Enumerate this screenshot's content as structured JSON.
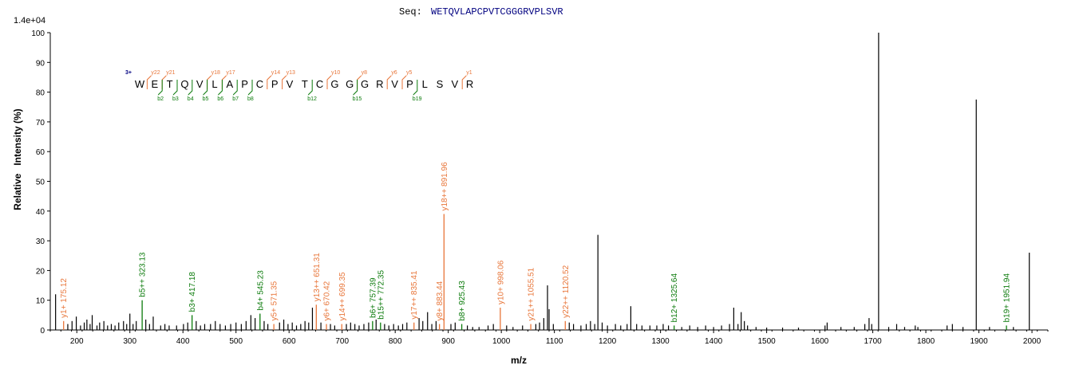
{
  "header": {
    "seq_label": "Seq:",
    "sequence": "WETQVLAPCPVTCGGGRVPLSVR",
    "max_intensity": "1.4e+04"
  },
  "colors": {
    "y_ion": "#E8763A",
    "b_ion": "#0A7A0A",
    "peak": "#000000",
    "charge": "#000080",
    "axis": "#000000"
  },
  "ladder": {
    "charge": "3+",
    "residues": [
      "W",
      "E",
      "T",
      "Q",
      "V",
      "L",
      "A",
      "P",
      "C",
      "P",
      "V",
      "T",
      "C",
      "G",
      "G",
      "G",
      "R",
      "V",
      "P",
      "L",
      "S",
      "V",
      "R"
    ],
    "y_marks": [
      {
        "after": 1,
        "label": "y22"
      },
      {
        "after": 2,
        "label": "y21"
      },
      {
        "after": 5,
        "label": "y18"
      },
      {
        "after": 6,
        "label": "y17"
      },
      {
        "after": 9,
        "label": "y14"
      },
      {
        "after": 10,
        "label": "y13"
      },
      {
        "after": 13,
        "label": "y10"
      },
      {
        "after": 15,
        "label": "y8"
      },
      {
        "after": 17,
        "label": "y6"
      },
      {
        "after": 18,
        "label": "y5"
      },
      {
        "after": 22,
        "label": "y1"
      }
    ],
    "b_marks": [
      {
        "after": 2,
        "label": "b2"
      },
      {
        "after": 3,
        "label": "b3"
      },
      {
        "after": 4,
        "label": "b4"
      },
      {
        "after": 5,
        "label": "b5"
      },
      {
        "after": 6,
        "label": "b6"
      },
      {
        "after": 7,
        "label": "b7"
      },
      {
        "after": 8,
        "label": "b8"
      },
      {
        "after": 12,
        "label": "b12"
      },
      {
        "after": 15,
        "label": "b15"
      },
      {
        "after": 19,
        "label": "b19"
      }
    ]
  },
  "chart_data": {
    "type": "bar",
    "xlabel": "m/z",
    "ylabel": "Relative   Intensity (%)",
    "xlim": [
      150,
      2030
    ],
    "ylim": [
      0,
      100
    ],
    "x_ticks": [
      200,
      300,
      400,
      500,
      600,
      700,
      800,
      900,
      1000,
      1100,
      1200,
      1300,
      1400,
      1500,
      1600,
      1700,
      1800,
      1900,
      2000
    ],
    "y_ticks": [
      0,
      10,
      20,
      30,
      40,
      50,
      60,
      70,
      80,
      90,
      100
    ],
    "grid": false,
    "annotated_peaks": [
      {
        "mz": 175.12,
        "intensity": 3,
        "label": "y1+ 175.12",
        "ion": "y"
      },
      {
        "mz": 323.13,
        "intensity": 10,
        "label": "b5++ 323.13",
        "ion": "b"
      },
      {
        "mz": 417.18,
        "intensity": 5,
        "label": "b3+ 417.18",
        "ion": "b"
      },
      {
        "mz": 545.23,
        "intensity": 5.5,
        "label": "b4+ 545.23",
        "ion": "b"
      },
      {
        "mz": 571.35,
        "intensity": 2,
        "label": "y5+ 571.35",
        "ion": "y"
      },
      {
        "mz": 651.31,
        "intensity": 8.5,
        "label": "y13++ 651.31",
        "ion": "y"
      },
      {
        "mz": 670.42,
        "intensity": 2,
        "label": "y6+ 670.42",
        "ion": "y"
      },
      {
        "mz": 699.35,
        "intensity": 2,
        "label": "y14++ 699.35",
        "ion": "y"
      },
      {
        "mz": 757.39,
        "intensity": 3,
        "label": "b6+ 757.39",
        "ion": "b"
      },
      {
        "mz": 772.35,
        "intensity": 2.5,
        "label": "b15++ 772.35",
        "ion": "b"
      },
      {
        "mz": 835.41,
        "intensity": 2.5,
        "label": "y17++ 835.41",
        "ion": "y"
      },
      {
        "mz": 883.44,
        "intensity": 2,
        "label": "y8+ 883.44",
        "ion": "y"
      },
      {
        "mz": 891.96,
        "intensity": 39,
        "label": "y18++ 891.96",
        "ion": "y"
      },
      {
        "mz": 925.43,
        "intensity": 2,
        "label": "b8+ 925.43",
        "ion": "b"
      },
      {
        "mz": 998.06,
        "intensity": 7.5,
        "label": "y10+ 998.06",
        "ion": "y"
      },
      {
        "mz": 1055.51,
        "intensity": 2,
        "label": "y21++ 1055.51",
        "ion": "y"
      },
      {
        "mz": 1120.52,
        "intensity": 3,
        "label": "y22++ 1120.52",
        "ion": "y"
      },
      {
        "mz": 1325.64,
        "intensity": 1.5,
        "label": "b12+ 1325.64",
        "ion": "b"
      },
      {
        "mz": 1951.94,
        "intensity": 1.5,
        "label": "b19+ 1951.94",
        "ion": "b"
      }
    ],
    "peaks": [
      {
        "mz": 160,
        "intensity": 12
      },
      {
        "mz": 183,
        "intensity": 2
      },
      {
        "mz": 191,
        "intensity": 3
      },
      {
        "mz": 199,
        "intensity": 4.5
      },
      {
        "mz": 207,
        "intensity": 1.5
      },
      {
        "mz": 214,
        "intensity": 2.5
      },
      {
        "mz": 219,
        "intensity": 3.5
      },
      {
        "mz": 225,
        "intensity": 2
      },
      {
        "mz": 229,
        "intensity": 5
      },
      {
        "mz": 238,
        "intensity": 1.5
      },
      {
        "mz": 243,
        "intensity": 2.5
      },
      {
        "mz": 251,
        "intensity": 3
      },
      {
        "mz": 258,
        "intensity": 1.5
      },
      {
        "mz": 265,
        "intensity": 2
      },
      {
        "mz": 272,
        "intensity": 1.5
      },
      {
        "mz": 279,
        "intensity": 2.5
      },
      {
        "mz": 288,
        "intensity": 3
      },
      {
        "mz": 294,
        "intensity": 2
      },
      {
        "mz": 300,
        "intensity": 5.5
      },
      {
        "mz": 306,
        "intensity": 2
      },
      {
        "mz": 312,
        "intensity": 3
      },
      {
        "mz": 330,
        "intensity": 3.5
      },
      {
        "mz": 337,
        "intensity": 2
      },
      {
        "mz": 344,
        "intensity": 4.5
      },
      {
        "mz": 358,
        "intensity": 1.5
      },
      {
        "mz": 366,
        "intensity": 2
      },
      {
        "mz": 374,
        "intensity": 1.5
      },
      {
        "mz": 388,
        "intensity": 1.5
      },
      {
        "mz": 401,
        "intensity": 2
      },
      {
        "mz": 409,
        "intensity": 2.5
      },
      {
        "mz": 425,
        "intensity": 3
      },
      {
        "mz": 433,
        "intensity": 1.5
      },
      {
        "mz": 441,
        "intensity": 2
      },
      {
        "mz": 452,
        "intensity": 2
      },
      {
        "mz": 461,
        "intensity": 3
      },
      {
        "mz": 470,
        "intensity": 2
      },
      {
        "mz": 480,
        "intensity": 1.5
      },
      {
        "mz": 490,
        "intensity": 2
      },
      {
        "mz": 500,
        "intensity": 2.5
      },
      {
        "mz": 510,
        "intensity": 2
      },
      {
        "mz": 519,
        "intensity": 3
      },
      {
        "mz": 528,
        "intensity": 5
      },
      {
        "mz": 536,
        "intensity": 4
      },
      {
        "mz": 553,
        "intensity": 3
      },
      {
        "mz": 560,
        "intensity": 2
      },
      {
        "mz": 582,
        "intensity": 2.5
      },
      {
        "mz": 590,
        "intensity": 3.5
      },
      {
        "mz": 598,
        "intensity": 2
      },
      {
        "mz": 606,
        "intensity": 2.5
      },
      {
        "mz": 614,
        "intensity": 1.5
      },
      {
        "mz": 622,
        "intensity": 2
      },
      {
        "mz": 630,
        "intensity": 3
      },
      {
        "mz": 637,
        "intensity": 2.5
      },
      {
        "mz": 644,
        "intensity": 7.5
      },
      {
        "mz": 660,
        "intensity": 2.5
      },
      {
        "mz": 678,
        "intensity": 2
      },
      {
        "mz": 686,
        "intensity": 1.5
      },
      {
        "mz": 708,
        "intensity": 2
      },
      {
        "mz": 716,
        "intensity": 2.5
      },
      {
        "mz": 724,
        "intensity": 2
      },
      {
        "mz": 732,
        "intensity": 1.5
      },
      {
        "mz": 741,
        "intensity": 2
      },
      {
        "mz": 750,
        "intensity": 2.5
      },
      {
        "mz": 764,
        "intensity": 3.5
      },
      {
        "mz": 780,
        "intensity": 2
      },
      {
        "mz": 788,
        "intensity": 1.5
      },
      {
        "mz": 797,
        "intensity": 2
      },
      {
        "mz": 806,
        "intensity": 1.5
      },
      {
        "mz": 814,
        "intensity": 2
      },
      {
        "mz": 822,
        "intensity": 2.5
      },
      {
        "mz": 845,
        "intensity": 4
      },
      {
        "mz": 852,
        "intensity": 3
      },
      {
        "mz": 861,
        "intensity": 6
      },
      {
        "mz": 869,
        "intensity": 2
      },
      {
        "mz": 877,
        "intensity": 3
      },
      {
        "mz": 905,
        "intensity": 2
      },
      {
        "mz": 913,
        "intensity": 2.5
      },
      {
        "mz": 936,
        "intensity": 1.5
      },
      {
        "mz": 946,
        "intensity": 1
      },
      {
        "mz": 958,
        "intensity": 1
      },
      {
        "mz": 975,
        "intensity": 1.5
      },
      {
        "mz": 985,
        "intensity": 2
      },
      {
        "mz": 1010,
        "intensity": 1.5
      },
      {
        "mz": 1022,
        "intensity": 1
      },
      {
        "mz": 1040,
        "intensity": 1.5
      },
      {
        "mz": 1065,
        "intensity": 2
      },
      {
        "mz": 1072,
        "intensity": 2.5
      },
      {
        "mz": 1080,
        "intensity": 4
      },
      {
        "mz": 1087,
        "intensity": 15
      },
      {
        "mz": 1090,
        "intensity": 7
      },
      {
        "mz": 1098,
        "intensity": 2
      },
      {
        "mz": 1128,
        "intensity": 2.5
      },
      {
        "mz": 1136,
        "intensity": 2
      },
      {
        "mz": 1150,
        "intensity": 1.5
      },
      {
        "mz": 1160,
        "intensity": 2
      },
      {
        "mz": 1168,
        "intensity": 3
      },
      {
        "mz": 1176,
        "intensity": 2
      },
      {
        "mz": 1182,
        "intensity": 32
      },
      {
        "mz": 1190,
        "intensity": 2.5
      },
      {
        "mz": 1200,
        "intensity": 1.5
      },
      {
        "mz": 1215,
        "intensity": 2
      },
      {
        "mz": 1225,
        "intensity": 1.5
      },
      {
        "mz": 1237,
        "intensity": 2
      },
      {
        "mz": 1244,
        "intensity": 8
      },
      {
        "mz": 1255,
        "intensity": 2
      },
      {
        "mz": 1265,
        "intensity": 1.5
      },
      {
        "mz": 1280,
        "intensity": 1.5
      },
      {
        "mz": 1293,
        "intensity": 1.5
      },
      {
        "mz": 1305,
        "intensity": 2
      },
      {
        "mz": 1315,
        "intensity": 1.5
      },
      {
        "mz": 1340,
        "intensity": 1
      },
      {
        "mz": 1355,
        "intensity": 1.5
      },
      {
        "mz": 1370,
        "intensity": 1
      },
      {
        "mz": 1385,
        "intensity": 1.5
      },
      {
        "mz": 1400,
        "intensity": 1
      },
      {
        "mz": 1415,
        "intensity": 1.5
      },
      {
        "mz": 1430,
        "intensity": 2
      },
      {
        "mz": 1438,
        "intensity": 7.5
      },
      {
        "mz": 1446,
        "intensity": 2
      },
      {
        "mz": 1452,
        "intensity": 6
      },
      {
        "mz": 1458,
        "intensity": 3
      },
      {
        "mz": 1464,
        "intensity": 1.5
      },
      {
        "mz": 1480,
        "intensity": 1
      },
      {
        "mz": 1500,
        "intensity": 0.8
      },
      {
        "mz": 1530,
        "intensity": 0.8
      },
      {
        "mz": 1560,
        "intensity": 0.8
      },
      {
        "mz": 1610,
        "intensity": 1.5
      },
      {
        "mz": 1614,
        "intensity": 2.5
      },
      {
        "mz": 1640,
        "intensity": 1
      },
      {
        "mz": 1665,
        "intensity": 1
      },
      {
        "mz": 1685,
        "intensity": 2
      },
      {
        "mz": 1693,
        "intensity": 4
      },
      {
        "mz": 1698,
        "intensity": 2
      },
      {
        "mz": 1711,
        "intensity": 100
      },
      {
        "mz": 1730,
        "intensity": 1
      },
      {
        "mz": 1745,
        "intensity": 2
      },
      {
        "mz": 1760,
        "intensity": 1
      },
      {
        "mz": 1780,
        "intensity": 1.5
      },
      {
        "mz": 1785,
        "intensity": 1
      },
      {
        "mz": 1840,
        "intensity": 1.5
      },
      {
        "mz": 1850,
        "intensity": 2
      },
      {
        "mz": 1870,
        "intensity": 1
      },
      {
        "mz": 1895,
        "intensity": 77.5
      },
      {
        "mz": 1920,
        "intensity": 1
      },
      {
        "mz": 1965,
        "intensity": 1
      },
      {
        "mz": 1995,
        "intensity": 26
      }
    ]
  }
}
